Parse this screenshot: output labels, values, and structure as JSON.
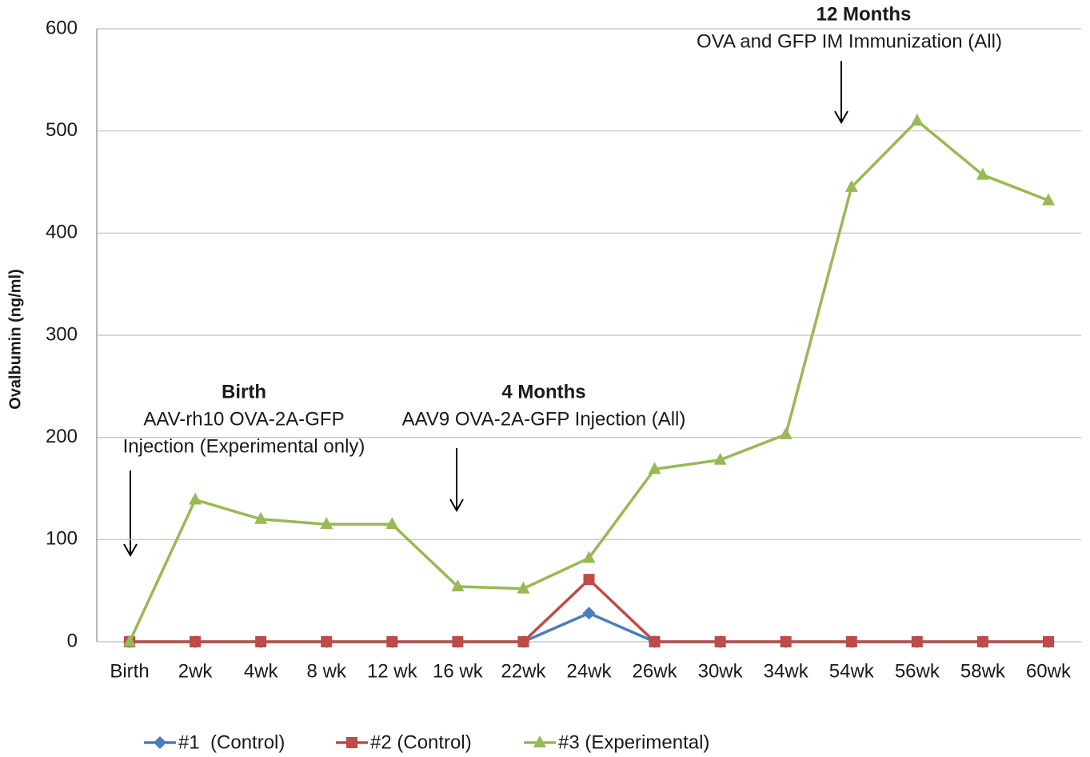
{
  "chart_data": {
    "type": "line",
    "y_label": "Ovalbumin (ng/ml)",
    "categories": [
      "Birth",
      "2wk",
      "4wk",
      "8 wk",
      "12 wk",
      "16 wk",
      "22wk",
      "24wk",
      "26wk",
      "30wk",
      "34wk",
      "54wk",
      "56wk",
      "58wk",
      "60wk"
    ],
    "series": [
      {
        "name": "#1  (Control)",
        "color": "#4a7ebb",
        "marker": "diamond",
        "values": [
          0,
          0,
          0,
          0,
          0,
          0,
          0,
          28,
          0,
          0,
          0,
          0,
          0,
          0,
          0
        ]
      },
      {
        "name": "#2 (Control)",
        "color": "#be4b48",
        "marker": "square",
        "values": [
          0,
          0,
          0,
          0,
          0,
          0,
          0,
          61,
          0,
          0,
          0,
          0,
          0,
          0,
          0
        ]
      },
      {
        "name": "#3 (Experimental)",
        "color": "#98b954",
        "marker": "triangle",
        "values": [
          0,
          139,
          120,
          115,
          115,
          54,
          52,
          82,
          169,
          178,
          203,
          445,
          510,
          457,
          432
        ]
      }
    ],
    "ylim": [
      0,
      600
    ],
    "yticks": [
      0,
      100,
      200,
      300,
      400,
      500,
      600
    ],
    "grid": true,
    "legend": "bottom",
    "annotations": [
      {
        "title": "Birth",
        "lines": [
          "AAV-rh10 OVA-2A-GFP",
          "Injection (Experimental only)"
        ]
      },
      {
        "title": "4 Months",
        "lines": [
          "AAV9 OVA-2A-GFP Injection (All)"
        ]
      },
      {
        "title": "12 Months",
        "lines": [
          "OVA and GFP IM Immunization (All)"
        ]
      }
    ]
  }
}
